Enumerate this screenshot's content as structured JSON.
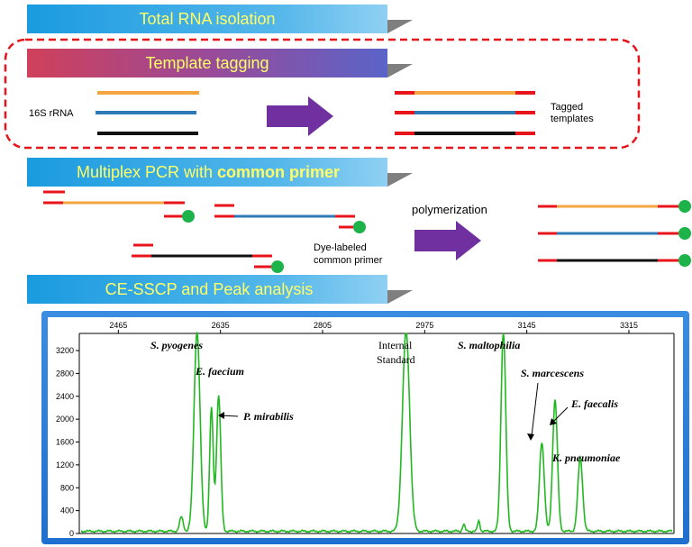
{
  "steps": {
    "step1": "Total RNA isolation",
    "step2": "Template tagging",
    "step3_prefix": "Multiplex PCR with ",
    "step3_bold": "common primer",
    "step4": "CE-SSCP and Peak analysis"
  },
  "labels": {
    "rrna": "16S rRNA",
    "tagged_line1": "Tagged",
    "tagged_line2": "templates",
    "dye_line1": "Dye-labeled",
    "dye_line2": "common primer",
    "polymerization": "polymerization"
  },
  "colors": {
    "orange": "#f4a540",
    "blue": "#2e7ab8",
    "black": "#111111",
    "tag_red": "#e8141c",
    "dye_green": "#1db34a",
    "arrow_purple": "#7030a0",
    "trace_green": "#22b822"
  },
  "chart_data": {
    "type": "line",
    "x_ticks": [
      "2465",
      "2635",
      "2805",
      "2975",
      "3145",
      "3315"
    ],
    "y_ticks": [
      "0",
      "400",
      "800",
      "1200",
      "1600",
      "2000",
      "2400",
      "2800",
      "3200"
    ],
    "xlim": [
      2400,
      3390
    ],
    "ylim": [
      0,
      3500
    ],
    "peak_labels": {
      "s_pyogenes": "S. pyogenes",
      "e_faecium": "E. faecium",
      "p_mirabilis": "P. mirabilis",
      "internal_line1": "Internal",
      "internal_line2": "Standard",
      "s_maltophilia": "S. maltophilia",
      "s_marcescens": "S. marcescens",
      "e_faecalis": "E. faecalis",
      "k_pneumoniae": "K. pneumoniae"
    },
    "peaks": [
      {
        "x": 2570,
        "height": 250,
        "width": 3
      },
      {
        "x": 2596,
        "height": 3500,
        "width": 5
      },
      {
        "x": 2620,
        "height": 2150,
        "width": 3
      },
      {
        "x": 2632,
        "height": 2380,
        "width": 3.5
      },
      {
        "x": 2944,
        "height": 3500,
        "width": 6
      },
      {
        "x": 3040,
        "height": 120,
        "width": 2
      },
      {
        "x": 3065,
        "height": 180,
        "width": 2
      },
      {
        "x": 3106,
        "height": 3500,
        "width": 4
      },
      {
        "x": 3170,
        "height": 1560,
        "width": 4
      },
      {
        "x": 3192,
        "height": 2300,
        "width": 4
      },
      {
        "x": 3234,
        "height": 1280,
        "width": 4
      }
    ],
    "baseline": 40
  }
}
